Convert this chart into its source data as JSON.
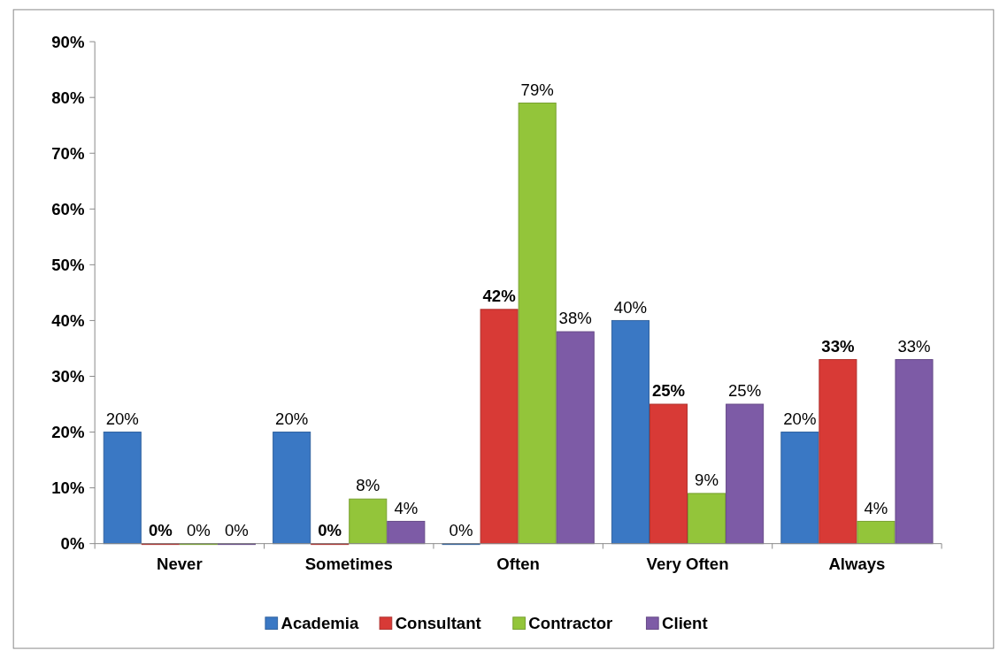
{
  "chart_data": {
    "type": "bar",
    "categories": [
      "Never",
      "Sometimes",
      "Often",
      "Very Often",
      "Always"
    ],
    "series": [
      {
        "name": "Academia",
        "color": "#3a78c4",
        "values": [
          20,
          20,
          0,
          40,
          20
        ],
        "value_labels": [
          "20%",
          "20%",
          "0%",
          "40%",
          "20%"
        ]
      },
      {
        "name": "Consultant",
        "color": "#d83a36",
        "values": [
          0,
          0,
          42,
          25,
          33
        ],
        "value_labels": [
          "0%",
          "0%",
          "42%",
          "25%",
          "33%"
        ]
      },
      {
        "name": "Contractor",
        "color": "#93c53a",
        "values": [
          0,
          8,
          79,
          9,
          4
        ],
        "value_labels": [
          "0%",
          "8%",
          "79%",
          "9%",
          "4%"
        ]
      },
      {
        "name": "Client",
        "color": "#7d5ba6",
        "values": [
          0,
          4,
          38,
          25,
          33
        ],
        "value_labels": [
          "0%",
          "4%",
          "38%",
          "25%",
          "33%"
        ]
      }
    ],
    "ylim": [
      0,
      90
    ],
    "yticks": [
      {
        "value": 0,
        "label": "0%"
      },
      {
        "value": 10,
        "label": "10%"
      },
      {
        "value": 20,
        "label": "20%"
      },
      {
        "value": 30,
        "label": "30%"
      },
      {
        "value": 40,
        "label": "40%"
      },
      {
        "value": 50,
        "label": "50%"
      },
      {
        "value": 60,
        "label": "60%"
      },
      {
        "value": 70,
        "label": "70%"
      },
      {
        "value": 80,
        "label": "80%"
      },
      {
        "value": 90,
        "label": "90%"
      }
    ],
    "legend": "bottom"
  }
}
